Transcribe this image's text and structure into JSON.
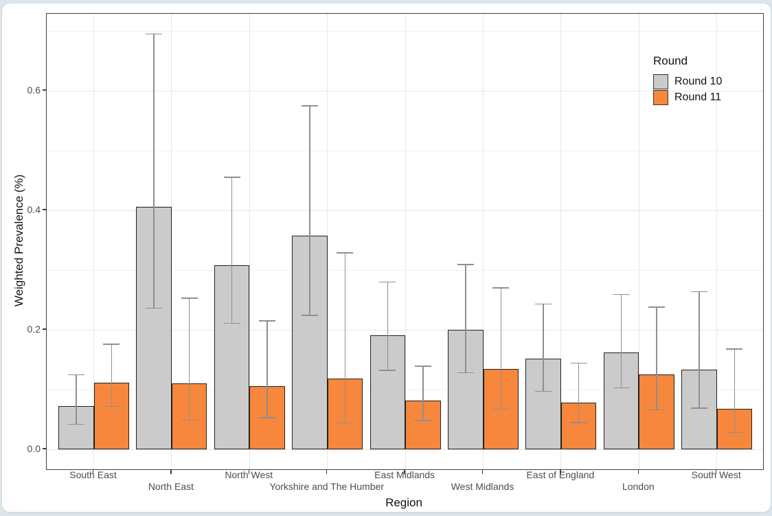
{
  "chart_data": {
    "type": "bar",
    "title": "",
    "xlabel": "Region",
    "ylabel": "Weighted Prevalence (%)",
    "categories": [
      "South East",
      "North East",
      "North West",
      "Yorkshire and The Humber",
      "East Midlands",
      "West Midlands",
      "East of England",
      "London",
      "South West"
    ],
    "series": [
      {
        "name": "Round 10",
        "color": "#CBCBCB",
        "values": [
          0.072,
          0.406,
          0.308,
          0.357,
          0.191,
          0.2,
          0.152,
          0.162,
          0.133
        ],
        "ci_low": [
          0.042,
          0.236,
          0.211,
          0.224,
          0.132,
          0.128,
          0.097,
          0.103,
          0.069
        ],
        "ci_high": [
          0.125,
          0.695,
          0.455,
          0.575,
          0.28,
          0.309,
          0.243,
          0.259,
          0.264
        ]
      },
      {
        "name": "Round 11",
        "color": "#F6873C",
        "values": [
          0.111,
          0.11,
          0.106,
          0.118,
          0.082,
          0.134,
          0.078,
          0.125,
          0.068
        ],
        "ci_low": [
          0.072,
          0.049,
          0.053,
          0.044,
          0.048,
          0.067,
          0.045,
          0.066,
          0.028
        ],
        "ci_high": [
          0.176,
          0.253,
          0.215,
          0.329,
          0.139,
          0.27,
          0.144,
          0.238,
          0.168
        ]
      }
    ],
    "y_tick_labels": [
      "0.0",
      "0.2",
      "0.4",
      "0.6"
    ],
    "y_tick_values": [
      0.0,
      0.2,
      0.4,
      0.6
    ],
    "y_minor_values": [
      0.1,
      0.3,
      0.5,
      0.7
    ],
    "ylim": [
      -0.033,
      0.729
    ],
    "grid": "major and minor, light grey, on white panel with dark border",
    "error_bars": true,
    "error_bar_color": "#8F8F8F",
    "bar_outline_color": "#212121",
    "legend": {
      "title": "Round",
      "position": "inside top-right",
      "entries": [
        "Round 10",
        "Round 11"
      ]
    }
  }
}
